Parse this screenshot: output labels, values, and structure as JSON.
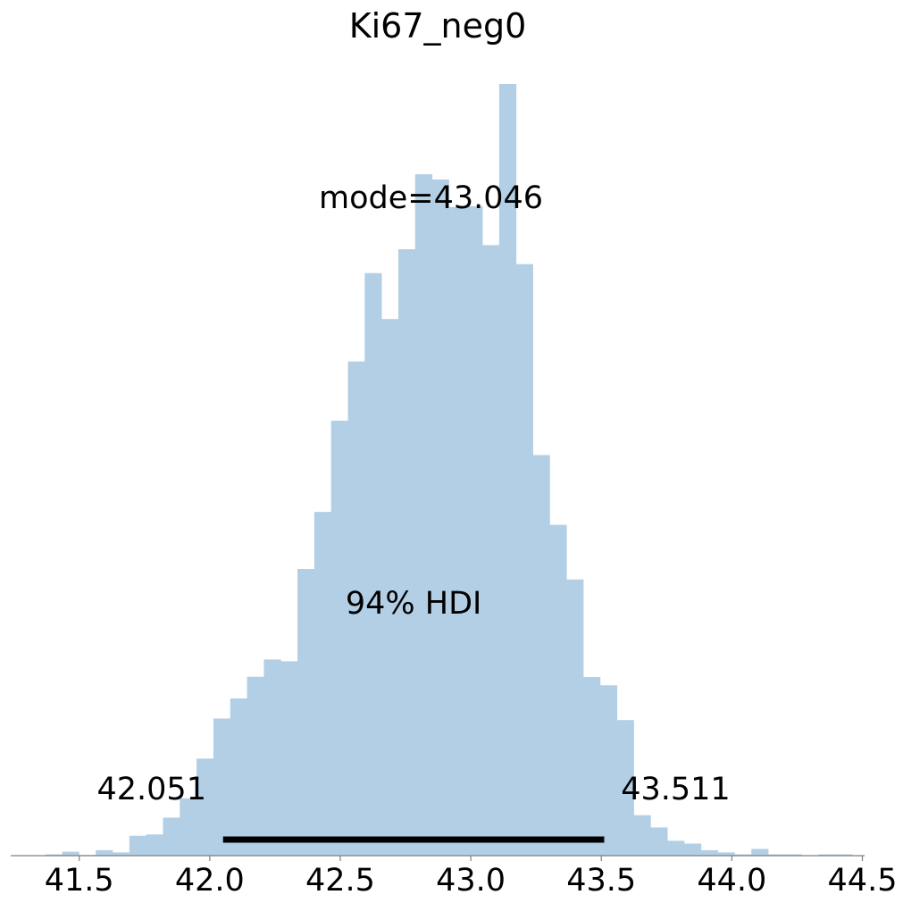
{
  "chart_data": {
    "type": "bar",
    "title": "Ki67_neg0",
    "xlabel": "",
    "ylabel": "",
    "xlim": [
      41.25,
      44.5
    ],
    "ylim": [
      0,
      1
    ],
    "xticks": [
      {
        "value": 41.5,
        "label": "41.5"
      },
      {
        "value": 42.0,
        "label": "42.0"
      },
      {
        "value": 42.5,
        "label": "42.5"
      },
      {
        "value": 43.0,
        "label": "43.0"
      },
      {
        "value": 43.5,
        "label": "43.5"
      },
      {
        "value": 44.0,
        "label": "44.0"
      },
      {
        "value": 44.5,
        "label": "44.5"
      }
    ],
    "histogram": {
      "bin_start": 41.37,
      "bin_width": 0.0644,
      "relative_heights": [
        0.006,
        0.018,
        0.003,
        0.025,
        0.015,
        0.091,
        0.097,
        0.174,
        0.262,
        0.444,
        0.627,
        0.719,
        0.818,
        0.897,
        0.889,
        1.311,
        1.572,
        1.989,
        2.26,
        2.664,
        2.454,
        2.773,
        3.116,
        3.092,
        2.966,
        2.97,
        2.792,
        3.529,
        2.705,
        1.832,
        1.513,
        1.263,
        0.817,
        0.779,
        0.62,
        0.185,
        0.129,
        0.068,
        0.055,
        0.025,
        0.015,
        0.006,
        0.031,
        0.006,
        0.006,
        0.0,
        0.006,
        0.006
      ],
      "color": "#b2cfe5"
    },
    "y_max_relative": 3.529,
    "hdi": {
      "low": 42.051,
      "high": 43.511,
      "low_label": "42.051",
      "high_label": "43.511",
      "label": "94% HDI",
      "color": "#000000"
    },
    "mode": {
      "value": 43.046,
      "label": "mode=43.046"
    },
    "grid": false,
    "legend": "none"
  }
}
